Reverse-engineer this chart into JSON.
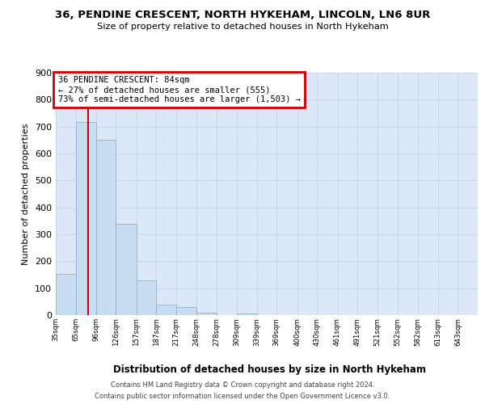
{
  "title": "36, PENDINE CRESCENT, NORTH HYKEHAM, LINCOLN, LN6 8UR",
  "subtitle": "Size of property relative to detached houses in North Hykeham",
  "xlabel": "Distribution of detached houses by size in North Hykeham",
  "ylabel": "Number of detached properties",
  "footnote1": "Contains HM Land Registry data © Crown copyright and database right 2024.",
  "footnote2": "Contains public sector information licensed under the Open Government Licence v3.0.",
  "bin_labels": [
    "35sqm",
    "65sqm",
    "96sqm",
    "126sqm",
    "157sqm",
    "187sqm",
    "217sqm",
    "248sqm",
    "278sqm",
    "309sqm",
    "339sqm",
    "369sqm",
    "400sqm",
    "430sqm",
    "461sqm",
    "491sqm",
    "521sqm",
    "552sqm",
    "582sqm",
    "613sqm",
    "643sqm"
  ],
  "bar_heights": [
    152,
    717,
    651,
    338,
    128,
    40,
    31,
    10,
    0,
    7,
    0,
    0,
    0,
    0,
    0,
    0,
    0,
    0,
    0,
    0,
    0
  ],
  "bar_color": "#c9ddf2",
  "bar_edge_color": "#8ab4d8",
  "grid_color": "#c8d8ec",
  "background_color": "#dce8f8",
  "vline_x": 84,
  "vline_color": "#cc0000",
  "annotation_title": "36 PENDINE CRESCENT: 84sqm",
  "annotation_line1": "← 27% of detached houses are smaller (555)",
  "annotation_line2": "73% of semi-detached houses are larger (1,503) →",
  "annotation_box_color": "#cc0000",
  "ylim": [
    0,
    900
  ],
  "yticks": [
    0,
    100,
    200,
    300,
    400,
    500,
    600,
    700,
    800,
    900
  ],
  "bin_edges": [
    35,
    65,
    96,
    126,
    157,
    187,
    217,
    248,
    278,
    309,
    339,
    369,
    400,
    430,
    461,
    491,
    521,
    552,
    582,
    613,
    643,
    673
  ]
}
